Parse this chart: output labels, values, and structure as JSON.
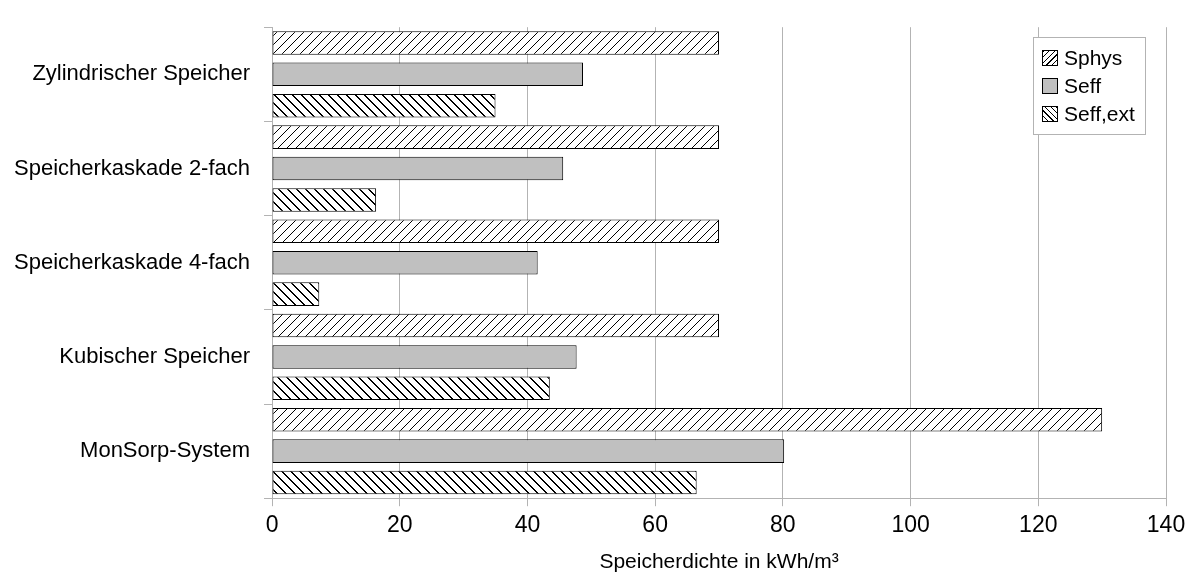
{
  "chart_data": {
    "type": "bar",
    "orientation": "horizontal",
    "xlabel": "Speicherdichte in kWh/m³",
    "categories": [
      "Zylindrischer Speicher",
      "Speicherkaskade 2-fach",
      "Speicherkaskade 4-fach",
      "Kubischer Speicher",
      "MonSorp-System"
    ],
    "series": [
      {
        "name": "Sphys",
        "color": "#ffffff",
        "values": [
          70,
          70,
          70,
          70,
          130
        ]
      },
      {
        "name": "Seff",
        "color": "#c0c0c0",
        "values": [
          48.7,
          45.6,
          41.6,
          47.7,
          80.2
        ]
      },
      {
        "name": "Seff,ext",
        "color": "#ffffff",
        "values": [
          35,
          16.3,
          7.4,
          43.5,
          66.5
        ]
      }
    ],
    "xlim": [
      0,
      140
    ],
    "xticks": [
      0,
      20,
      40,
      60,
      80,
      100,
      120,
      140
    ],
    "grid": "x",
    "legend": "top right"
  }
}
